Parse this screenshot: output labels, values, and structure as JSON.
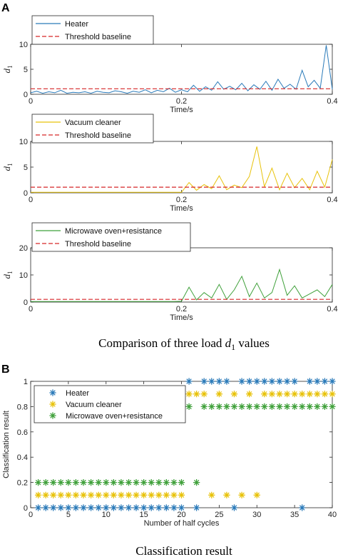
{
  "panel_labels": {
    "a": "A",
    "b": "B"
  },
  "part_a_caption": {
    "before": "Comparison of  three load ",
    "var": "d",
    "sub": "1",
    "after": " values"
  },
  "part_b_caption": "Classification result",
  "chart_data": [
    {
      "type": "line",
      "xlabel": "Time/s",
      "ylabel": {
        "var": "d",
        "sub": "1"
      },
      "xlim": [
        0,
        0.4
      ],
      "ylim": [
        0,
        10
      ],
      "xticks": [
        0,
        0.2,
        0.4
      ],
      "xticklabels": [
        "0",
        "0.2",
        "0.4"
      ],
      "yticks": [
        0,
        5,
        10
      ],
      "yticklabels": [
        "0",
        "5",
        "10"
      ],
      "legend_location": "top-left",
      "series": [
        {
          "name": "Heater",
          "color": "#2a7ab9",
          "x": [
            0,
            0.008,
            0.016,
            0.024,
            0.032,
            0.04,
            0.048,
            0.056,
            0.064,
            0.072,
            0.08,
            0.088,
            0.096,
            0.104,
            0.112,
            0.12,
            0.128,
            0.136,
            0.144,
            0.152,
            0.16,
            0.168,
            0.176,
            0.184,
            0.192,
            0.2,
            0.208,
            0.216,
            0.224,
            0.232,
            0.24,
            0.248,
            0.256,
            0.264,
            0.272,
            0.28,
            0.288,
            0.296,
            0.304,
            0.312,
            0.32,
            0.328,
            0.336,
            0.344,
            0.352,
            0.36,
            0.368,
            0.376,
            0.384,
            0.392,
            0.4
          ],
          "y": [
            0.3,
            0.6,
            0.2,
            0.5,
            0.3,
            0.8,
            0.2,
            0.4,
            0.3,
            0.5,
            0.2,
            0.6,
            0.4,
            0.3,
            0.7,
            0.5,
            0.2,
            0.6,
            0.4,
            0.9,
            0.3,
            0.8,
            0.5,
            1.2,
            0.4,
            0.9,
            0.5,
            1.8,
            0.6,
            1.5,
            0.8,
            2.5,
            1.0,
            1.6,
            0.9,
            2.2,
            0.7,
            1.9,
            1.0,
            2.6,
            0.8,
            3.0,
            1.2,
            2.0,
            1.0,
            4.8,
            1.5,
            2.8,
            1.2,
            9.8,
            1.0
          ]
        },
        {
          "name": "Threshold baseline",
          "color": "#d62728",
          "dashed": true,
          "x": [
            0,
            0.4
          ],
          "y": [
            1.1,
            1.1
          ]
        }
      ]
    },
    {
      "type": "line",
      "xlabel": "Time/s",
      "ylabel": {
        "var": "d",
        "sub": "1"
      },
      "xlim": [
        0,
        0.4
      ],
      "ylim": [
        0,
        10
      ],
      "xticks": [
        0,
        0.2,
        0.4
      ],
      "xticklabels": [
        "0",
        "0.2",
        "0.4"
      ],
      "yticks": [
        0,
        5,
        10
      ],
      "yticklabels": [
        "0",
        "5",
        "10"
      ],
      "legend_location": "top-left",
      "series": [
        {
          "name": "Vacuum cleaner",
          "color": "#e8c20a",
          "x": [
            0,
            0.01,
            0.02,
            0.03,
            0.04,
            0.05,
            0.06,
            0.07,
            0.08,
            0.09,
            0.1,
            0.11,
            0.12,
            0.13,
            0.14,
            0.15,
            0.16,
            0.17,
            0.18,
            0.19,
            0.2,
            0.21,
            0.22,
            0.23,
            0.24,
            0.25,
            0.26,
            0.27,
            0.28,
            0.29,
            0.3,
            0.31,
            0.32,
            0.33,
            0.34,
            0.35,
            0.36,
            0.37,
            0.38,
            0.39,
            0.4
          ],
          "y": [
            0.1,
            0.1,
            0.1,
            0.1,
            0.1,
            0.1,
            0.1,
            0.1,
            0.1,
            0.1,
            0.1,
            0.1,
            0.1,
            0.1,
            0.1,
            0.1,
            0.1,
            0.1,
            0.1,
            0.1,
            0.1,
            2.0,
            0.5,
            1.6,
            0.8,
            3.3,
            0.6,
            1.5,
            1.0,
            3.2,
            9.0,
            1.2,
            4.8,
            0.6,
            3.8,
            1.0,
            2.8,
            0.6,
            4.2,
            1.1,
            6.5
          ]
        },
        {
          "name": "Threshold baseline",
          "color": "#d62728",
          "dashed": true,
          "x": [
            0,
            0.4
          ],
          "y": [
            1.1,
            1.1
          ]
        }
      ]
    },
    {
      "type": "line",
      "xlabel": "Time/s",
      "ylabel": {
        "var": "d",
        "sub": "1"
      },
      "xlim": [
        0,
        0.4
      ],
      "ylim": [
        0,
        20
      ],
      "xticks": [
        0,
        0.2,
        0.4
      ],
      "xticklabels": [
        "0",
        "0.2",
        "0.4"
      ],
      "yticks": [
        0,
        10,
        20
      ],
      "yticklabels": [
        "0",
        "10",
        "20"
      ],
      "legend_location": "top-left",
      "series": [
        {
          "name": "Microwave oven+resistance",
          "color": "#3fa03a",
          "x": [
            0,
            0.01,
            0.02,
            0.03,
            0.04,
            0.05,
            0.06,
            0.07,
            0.08,
            0.09,
            0.1,
            0.11,
            0.12,
            0.13,
            0.14,
            0.15,
            0.16,
            0.17,
            0.18,
            0.19,
            0.2,
            0.21,
            0.22,
            0.23,
            0.24,
            0.25,
            0.26,
            0.27,
            0.28,
            0.29,
            0.3,
            0.31,
            0.32,
            0.33,
            0.34,
            0.35,
            0.36,
            0.37,
            0.38,
            0.39,
            0.4
          ],
          "y": [
            0.2,
            0.2,
            0.2,
            0.2,
            0.2,
            0.2,
            0.2,
            0.2,
            0.2,
            0.2,
            0.2,
            0.2,
            0.2,
            0.2,
            0.2,
            0.2,
            0.2,
            0.2,
            0.2,
            0.2,
            0.3,
            5.5,
            0.8,
            3.5,
            1.5,
            6.5,
            1.0,
            4.5,
            9.5,
            2.0,
            7.0,
            1.5,
            3.5,
            12.0,
            2.5,
            6.0,
            1.5,
            3.0,
            4.5,
            2.0,
            6.5
          ]
        },
        {
          "name": "Threshold baseline",
          "color": "#d62728",
          "dashed": true,
          "x": [
            0,
            0.4
          ],
          "y": [
            1.0,
            1.0
          ]
        }
      ]
    },
    {
      "type": "scatter",
      "xlabel": "Number of half cycles",
      "ylabel": "Classification result",
      "xlim": [
        0,
        40
      ],
      "ylim": [
        0,
        1
      ],
      "xticks": [
        0,
        5,
        10,
        15,
        20,
        25,
        30,
        35,
        40
      ],
      "xticklabels": [
        "0",
        "5",
        "10",
        "15",
        "20",
        "25",
        "30",
        "35",
        "40"
      ],
      "yticks": [
        0,
        0.2,
        0.4,
        0.6,
        0.8,
        1
      ],
      "yticklabels": [
        "0",
        "0.2",
        "0.4",
        "0.6",
        "0.8",
        "1"
      ],
      "legend_location": "top-left",
      "series": [
        {
          "name": "Heater",
          "color": "#2a7ab9",
          "x": [
            1,
            2,
            3,
            4,
            5,
            6,
            7,
            8,
            9,
            10,
            11,
            12,
            13,
            14,
            15,
            16,
            17,
            18,
            19,
            20,
            21,
            22,
            23,
            24,
            25,
            26,
            27,
            28,
            29,
            30,
            31,
            32,
            33,
            34,
            35,
            36,
            37,
            38,
            39,
            40
          ],
          "y": [
            0,
            0,
            0,
            0,
            0,
            0,
            0,
            0,
            0,
            0,
            0,
            0,
            0,
            0,
            0,
            0,
            0,
            0,
            0,
            0,
            1,
            0,
            1,
            1,
            1,
            1,
            0,
            1,
            1,
            1,
            1,
            1,
            1,
            1,
            1,
            0,
            1,
            1,
            1,
            1
          ]
        },
        {
          "name": "Vacuum cleaner",
          "color": "#e8c20a",
          "x": [
            1,
            2,
            3,
            4,
            5,
            6,
            7,
            8,
            9,
            10,
            11,
            12,
            13,
            14,
            15,
            16,
            17,
            18,
            19,
            20,
            21,
            22,
            23,
            24,
            25,
            26,
            27,
            28,
            29,
            30,
            31,
            32,
            33,
            34,
            35,
            36,
            37,
            38,
            39,
            40
          ],
          "y": [
            0.1,
            0.1,
            0.1,
            0.1,
            0.1,
            0.1,
            0.1,
            0.1,
            0.1,
            0.1,
            0.1,
            0.1,
            0.1,
            0.1,
            0.1,
            0.1,
            0.1,
            0.1,
            0.1,
            0.1,
            0.9,
            0.9,
            0.9,
            0.1,
            0.9,
            0.1,
            0.9,
            0.1,
            0.9,
            0.1,
            0.9,
            0.9,
            0.9,
            0.9,
            0.9,
            0.9,
            0.9,
            0.9,
            0.9,
            0.9
          ]
        },
        {
          "name": "Microwave oven+resistance",
          "color": "#3fa03a",
          "x": [
            1,
            2,
            3,
            4,
            5,
            6,
            7,
            8,
            9,
            10,
            11,
            12,
            13,
            14,
            15,
            16,
            17,
            18,
            19,
            20,
            21,
            22,
            23,
            24,
            25,
            26,
            27,
            28,
            29,
            30,
            31,
            32,
            33,
            34,
            35,
            36,
            37,
            38,
            39,
            40
          ],
          "y": [
            0.2,
            0.2,
            0.2,
            0.2,
            0.2,
            0.2,
            0.2,
            0.2,
            0.2,
            0.2,
            0.2,
            0.2,
            0.2,
            0.2,
            0.2,
            0.2,
            0.2,
            0.2,
            0.2,
            0.2,
            0.8,
            0.2,
            0.8,
            0.8,
            0.8,
            0.8,
            0.8,
            0.8,
            0.8,
            0.8,
            0.8,
            0.8,
            0.8,
            0.8,
            0.8,
            0.8,
            0.8,
            0.8,
            0.8,
            0.8
          ]
        }
      ]
    }
  ]
}
